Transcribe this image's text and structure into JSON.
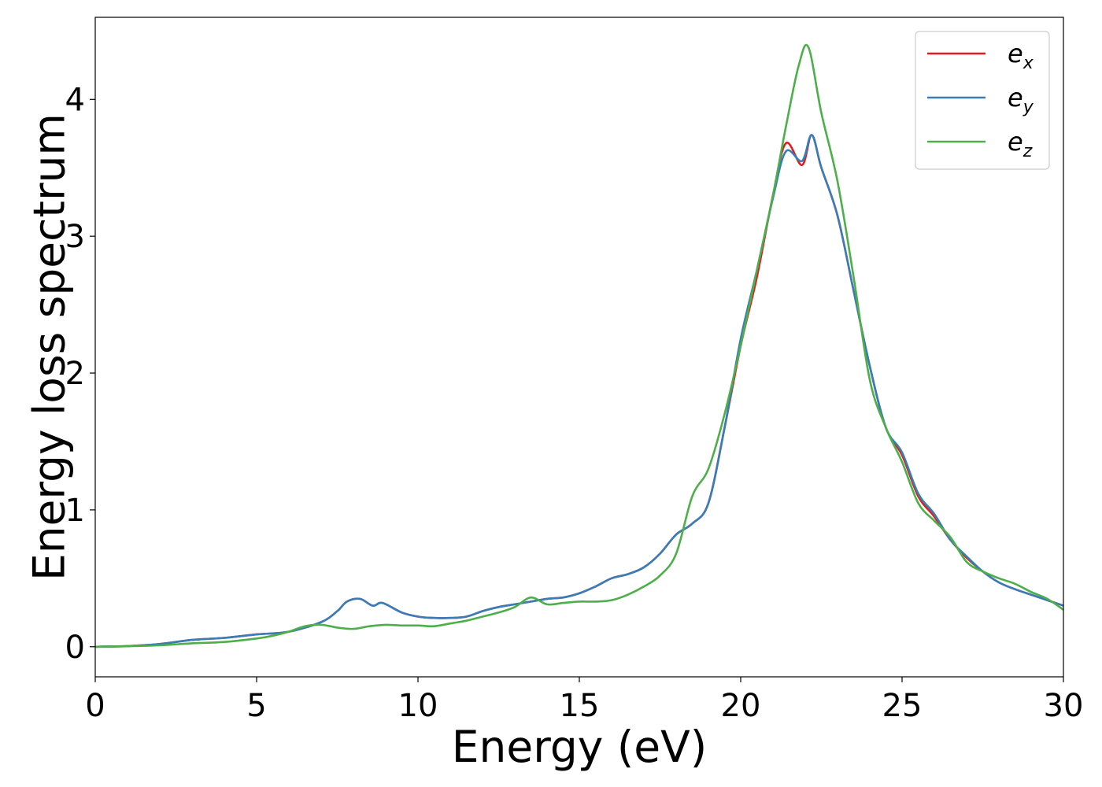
{
  "chart_data": {
    "type": "line",
    "xlabel": "Energy (eV)",
    "ylabel": "Energy loss spectrum",
    "xlim": [
      0,
      30
    ],
    "ylim": [
      -0.22,
      4.6
    ],
    "xticks": [
      {
        "value": 0,
        "label": "0"
      },
      {
        "value": 5,
        "label": "5"
      },
      {
        "value": 10,
        "label": "10"
      },
      {
        "value": 15,
        "label": "15"
      },
      {
        "value": 20,
        "label": "20"
      },
      {
        "value": 25,
        "label": "25"
      },
      {
        "value": 30,
        "label": "30"
      }
    ],
    "yticks": [
      {
        "value": 0,
        "label": "0"
      },
      {
        "value": 1,
        "label": "1"
      },
      {
        "value": 2,
        "label": "2"
      },
      {
        "value": 3,
        "label": "3"
      },
      {
        "value": 4,
        "label": "4"
      }
    ],
    "grid": false,
    "legend_position": "top-right",
    "series": [
      {
        "name": "e_x",
        "label_main": "e",
        "label_sub": "x",
        "color": "#e41a1c",
        "x": [
          0,
          1,
          2,
          3,
          4,
          5,
          6,
          7,
          7.5,
          7.8,
          8.2,
          8.6,
          8.9,
          9.5,
          10,
          10.5,
          11,
          11.5,
          12,
          12.5,
          13,
          13.5,
          14,
          14.5,
          15,
          15.5,
          16,
          16.5,
          17,
          17.5,
          18,
          18.5,
          19,
          19.5,
          20,
          20.5,
          21,
          21.4,
          21.9,
          22.2,
          22.5,
          23,
          23.5,
          24,
          24.5,
          25,
          25.5,
          26,
          26.5,
          27,
          27.5,
          28,
          28.5,
          29,
          29.5,
          30
        ],
        "y": [
          0,
          0.005,
          0.02,
          0.05,
          0.065,
          0.09,
          0.11,
          0.18,
          0.26,
          0.33,
          0.35,
          0.3,
          0.32,
          0.25,
          0.22,
          0.21,
          0.21,
          0.22,
          0.26,
          0.29,
          0.31,
          0.33,
          0.35,
          0.36,
          0.39,
          0.44,
          0.5,
          0.53,
          0.58,
          0.68,
          0.82,
          0.9,
          1.05,
          1.6,
          2.2,
          2.7,
          3.3,
          3.68,
          3.52,
          3.74,
          3.5,
          3.15,
          2.6,
          2.05,
          1.6,
          1.4,
          1.1,
          0.95,
          0.78,
          0.65,
          0.55,
          0.47,
          0.42,
          0.38,
          0.34,
          0.3
        ]
      },
      {
        "name": "e_y",
        "label_main": "e",
        "label_sub": "y",
        "color": "#377eb8",
        "x": [
          0,
          1,
          2,
          3,
          4,
          5,
          6,
          7,
          7.5,
          7.8,
          8.2,
          8.6,
          8.9,
          9.5,
          10,
          10.5,
          11,
          11.5,
          12,
          12.5,
          13,
          13.5,
          14,
          14.5,
          15,
          15.5,
          16,
          16.5,
          17,
          17.5,
          18,
          18.5,
          19,
          19.5,
          20,
          20.5,
          21,
          21.4,
          21.9,
          22.2,
          22.5,
          23,
          23.5,
          24,
          24.5,
          25,
          25.5,
          26,
          26.5,
          27,
          27.5,
          28,
          28.5,
          29,
          29.5,
          30
        ],
        "y": [
          0,
          0.005,
          0.02,
          0.05,
          0.065,
          0.09,
          0.11,
          0.18,
          0.26,
          0.33,
          0.35,
          0.3,
          0.32,
          0.25,
          0.22,
          0.21,
          0.21,
          0.22,
          0.26,
          0.29,
          0.31,
          0.33,
          0.35,
          0.36,
          0.39,
          0.44,
          0.5,
          0.53,
          0.58,
          0.68,
          0.82,
          0.9,
          1.05,
          1.6,
          2.25,
          2.75,
          3.28,
          3.62,
          3.55,
          3.74,
          3.5,
          3.15,
          2.6,
          2.05,
          1.6,
          1.42,
          1.12,
          0.97,
          0.78,
          0.66,
          0.55,
          0.47,
          0.42,
          0.38,
          0.34,
          0.3
        ]
      },
      {
        "name": "e_z",
        "label_main": "e",
        "label_sub": "z",
        "color": "#4daf4a",
        "x": [
          0,
          1,
          2,
          3,
          4,
          5,
          5.5,
          6,
          6.5,
          7,
          7.5,
          8,
          8.5,
          9,
          9.5,
          10,
          10.5,
          11,
          11.5,
          12,
          12.5,
          13,
          13.5,
          14,
          14.5,
          15,
          15.5,
          16,
          16.5,
          17,
          17.5,
          18,
          18.5,
          19,
          19.5,
          20,
          20.5,
          21,
          21.4,
          21.8,
          22.1,
          22.5,
          23,
          23.5,
          24,
          24.5,
          25,
          25.5,
          26,
          26.5,
          27,
          27.5,
          28,
          28.5,
          29,
          29.5,
          30
        ],
        "y": [
          0,
          0.003,
          0.01,
          0.025,
          0.035,
          0.06,
          0.08,
          0.11,
          0.15,
          0.16,
          0.14,
          0.13,
          0.15,
          0.16,
          0.155,
          0.155,
          0.15,
          0.17,
          0.19,
          0.22,
          0.25,
          0.29,
          0.36,
          0.31,
          0.32,
          0.33,
          0.33,
          0.34,
          0.38,
          0.44,
          0.52,
          0.68,
          1.1,
          1.3,
          1.7,
          2.2,
          2.75,
          3.3,
          3.8,
          4.25,
          4.38,
          3.9,
          3.4,
          2.7,
          1.95,
          1.6,
          1.35,
          1.05,
          0.92,
          0.8,
          0.62,
          0.55,
          0.5,
          0.46,
          0.4,
          0.35,
          0.27
        ]
      }
    ]
  }
}
